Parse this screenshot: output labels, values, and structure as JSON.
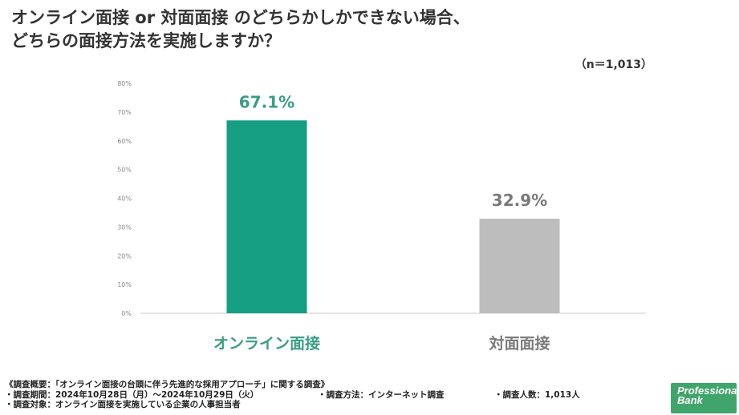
{
  "title": {
    "line1": "オンライン面接 or 対面面接 のどちらかしかできない場合、",
    "line2": "どちらの面接方法を実施しますか？"
  },
  "sample_size": "（n＝1,013）",
  "chart_data": {
    "type": "bar",
    "categories": [
      "オンライン面接",
      "対面面接"
    ],
    "values": [
      67.1,
      32.9
    ],
    "data_labels": [
      "67.1%",
      "32.9%"
    ],
    "yticks": [
      "0%",
      "10%",
      "20%",
      "30%",
      "40%",
      "50%",
      "60%",
      "70%",
      "80%"
    ],
    "ylim": [
      0,
      80
    ],
    "grid": false,
    "colors": [
      "#159e82",
      "#bdbdbd"
    ],
    "label_colors": [
      "#3a9d84",
      "#7a7a7a"
    ]
  },
  "notes": {
    "summary": "《調査概要：「オンライン面接の台頭に伴う先進的な採用アプローチ」に関する調査》",
    "period": "・調査期間：2024年10月28日（月）～2024年10月29日（火）",
    "method": "・調査方法：インターネット調査",
    "respondents": "・調査人数：1,013人",
    "target": "・調査対象：オンライン面接を実施している企業の人事担当者"
  },
  "logo": {
    "line1": "Professional",
    "line2": "Bank"
  }
}
